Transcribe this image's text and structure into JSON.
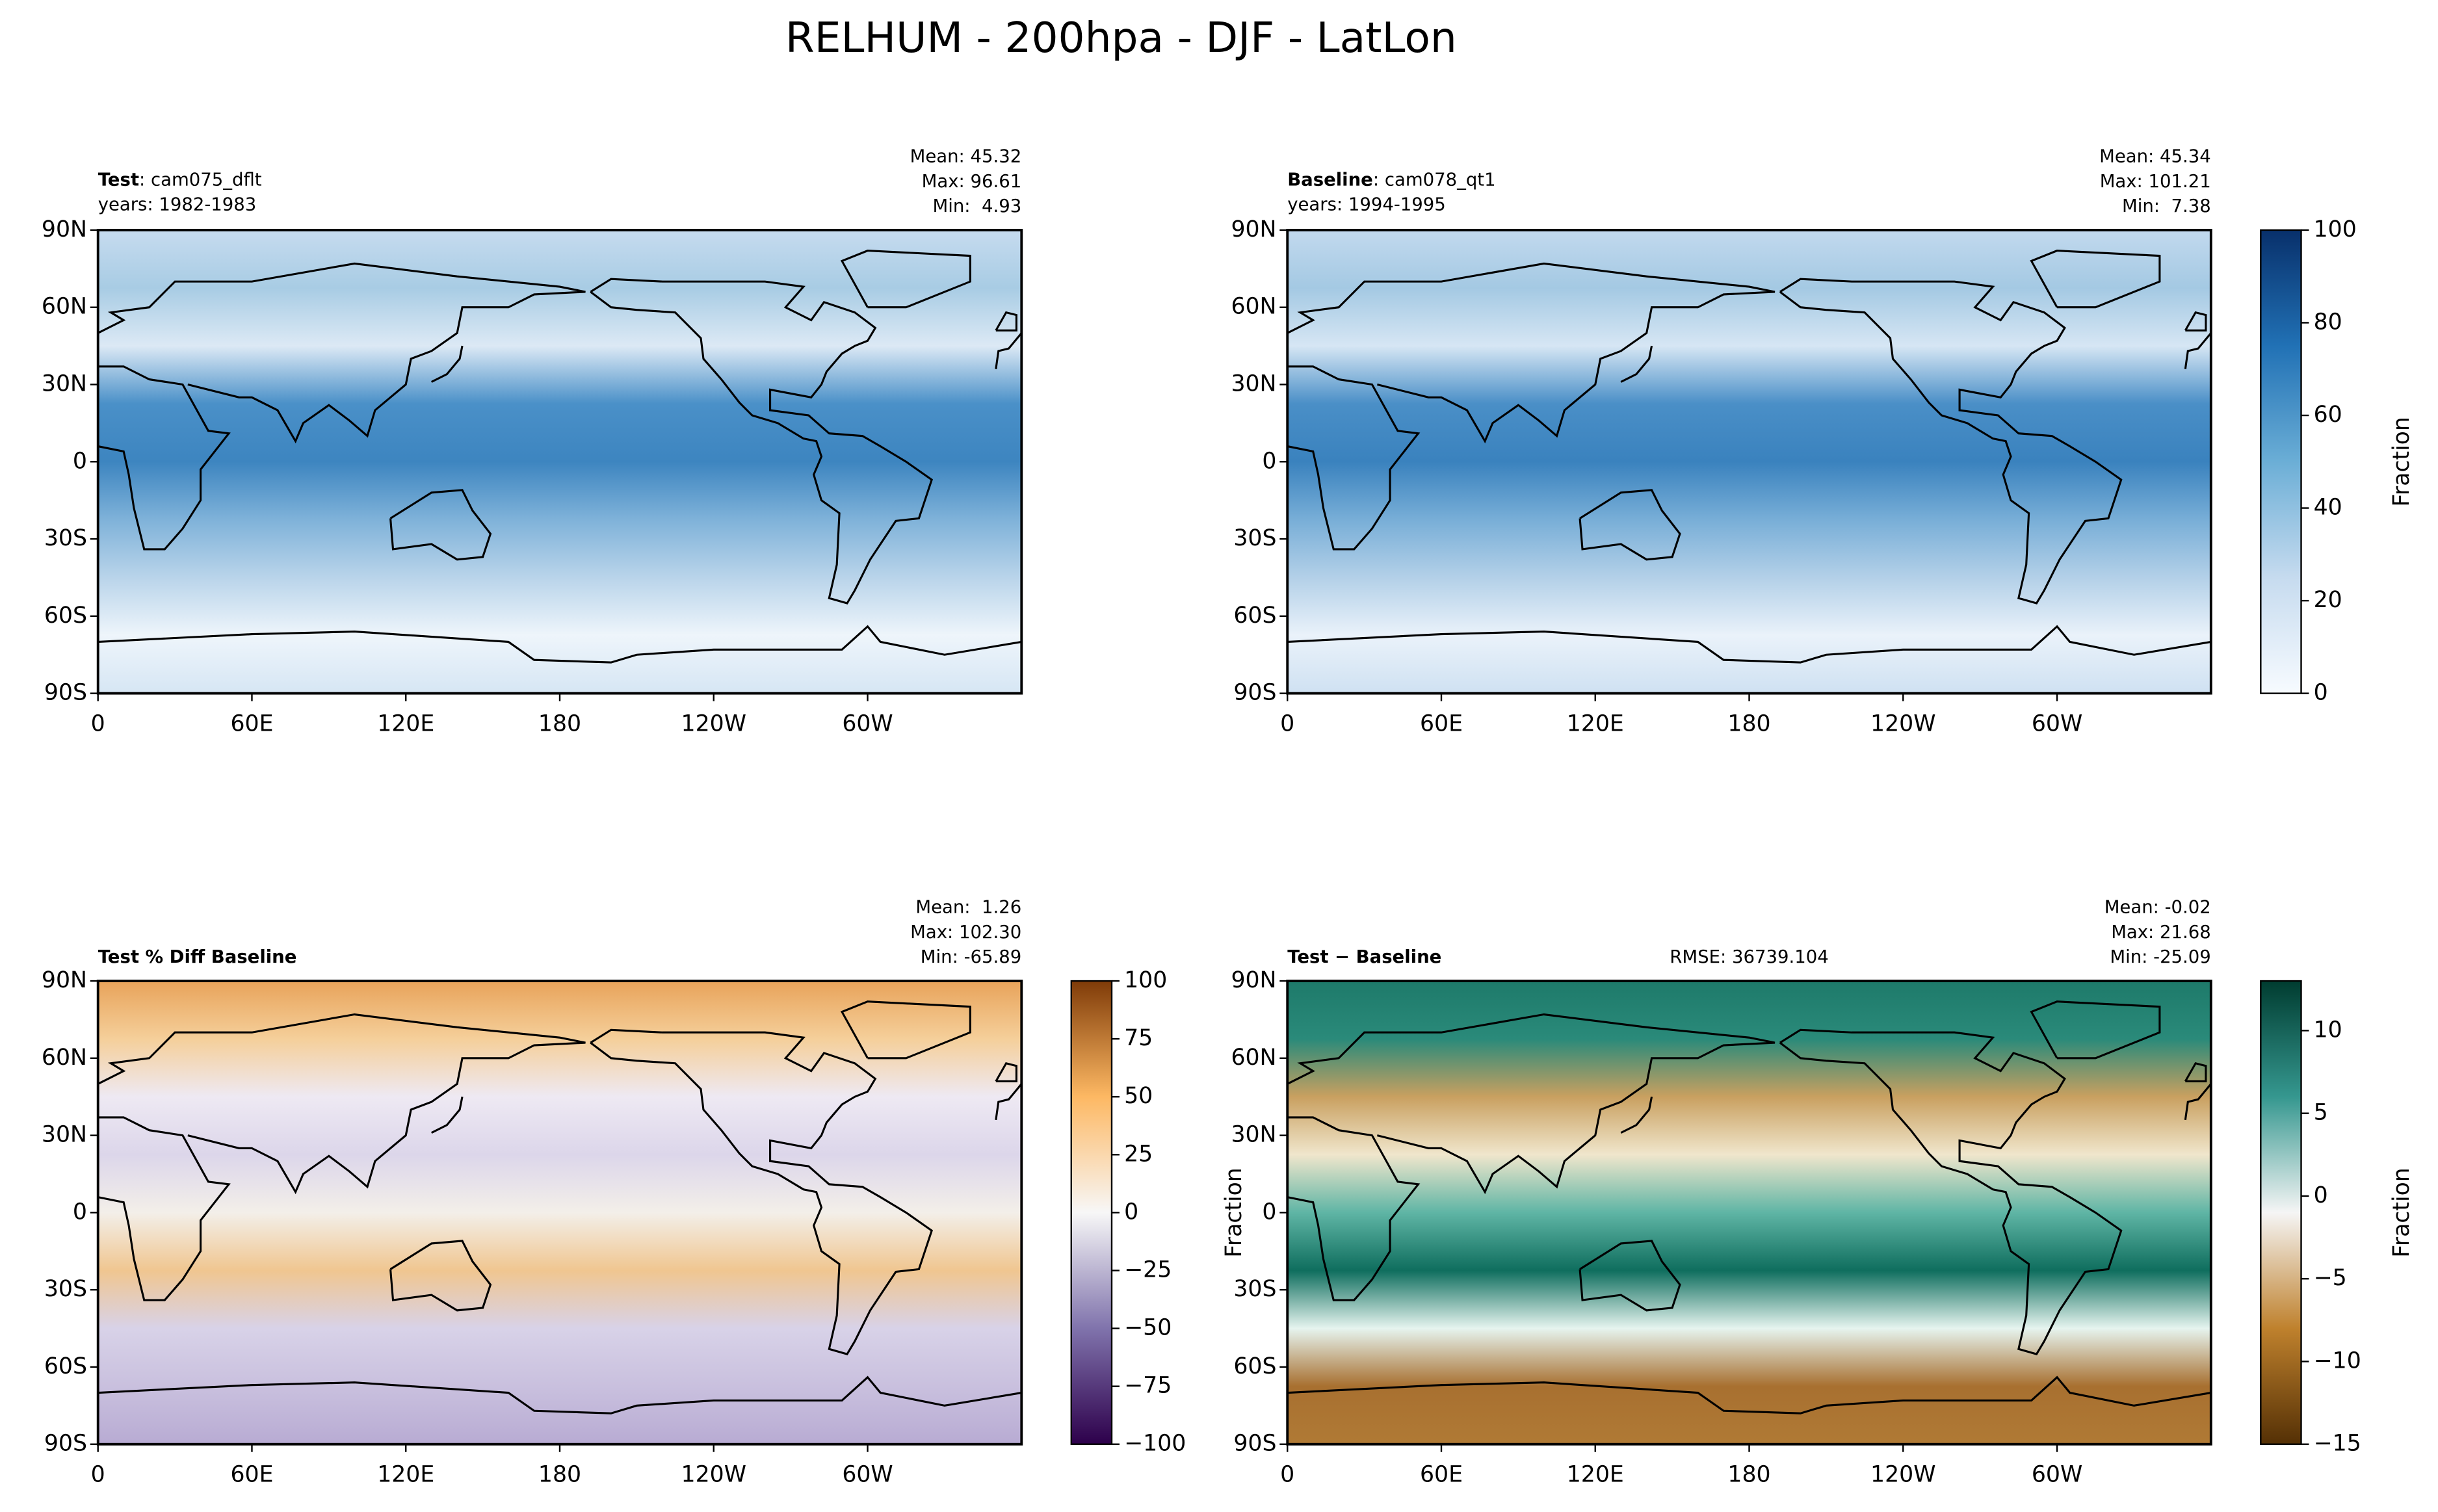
{
  "title": "RELHUM - 200hpa - DJF - LatLon",
  "chart_data": [
    {
      "type": "map",
      "title_bold": "Test",
      "title_rest": ": cam075_dflt",
      "subtitle": "years: 1982-1983",
      "stats": [
        "Mean: 45.32",
        "Max: 96.61",
        "Min:  4.93"
      ],
      "xlim": [
        0,
        360
      ],
      "ylim": [
        -90,
        90
      ],
      "xticks": [
        0,
        {
          "value": 60,
          "label": "60E"
        },
        {
          "value": 120,
          "label": "120E"
        },
        180,
        {
          "value": 240,
          "label": "120W"
        },
        {
          "value": 300,
          "label": "60W"
        }
      ],
      "yticks": [
        {
          "value": -90,
          "label": "90S"
        },
        {
          "value": -60,
          "label": "60S"
        },
        {
          "value": -30,
          "label": "30S"
        },
        0,
        {
          "value": 30,
          "label": "30N"
        },
        {
          "value": 60,
          "label": "60N"
        },
        {
          "value": 90,
          "label": "90N"
        }
      ],
      "map_colors": [
        "#d6e6f4",
        "#eef5fb",
        "#b9d4ea",
        "#7fb2d9",
        "#3d85c0",
        "#4a90c8",
        "#dce9f5",
        "#a8cce4",
        "#c6dbef"
      ]
    },
    {
      "type": "map",
      "title_bold": "Baseline",
      "title_rest": ": cam078_qt1",
      "subtitle": "years: 1994-1995",
      "stats": [
        "Mean: 45.34",
        "Max: 101.21",
        "Min:  7.38"
      ],
      "xlim": [
        0,
        360
      ],
      "ylim": [
        -90,
        90
      ],
      "xticks": [
        0,
        {
          "value": 60,
          "label": "60E"
        },
        {
          "value": 120,
          "label": "120E"
        },
        180,
        {
          "value": 240,
          "label": "120W"
        },
        {
          "value": 300,
          "label": "60W"
        }
      ],
      "yticks": [
        {
          "value": -90,
          "label": "90S"
        },
        {
          "value": -60,
          "label": "60S"
        },
        {
          "value": -30,
          "label": "30S"
        },
        0,
        {
          "value": 30,
          "label": "30N"
        },
        {
          "value": 60,
          "label": "60N"
        },
        {
          "value": 90,
          "label": "90N"
        }
      ],
      "map_colors": [
        "#cfe1f2",
        "#eaf2fa",
        "#b3d0e8",
        "#78aed7",
        "#3a82be",
        "#4a8fc7",
        "#d6e6f4",
        "#a4c9e3",
        "#c2d9ee"
      ],
      "colorbar": {
        "label": "Fraction",
        "lim": [
          0,
          100
        ],
        "ticks": [
          0,
          20,
          40,
          60,
          80,
          100
        ],
        "colors": [
          "#f7fbff",
          "#c6dbef",
          "#6baed6",
          "#2171b5",
          "#08306b"
        ]
      }
    },
    {
      "type": "map",
      "title_bold": "Test % Diff Baseline",
      "stats": [
        "Mean:  1.26",
        "Max: 102.30",
        "Min: -65.89"
      ],
      "xlim": [
        0,
        360
      ],
      "ylim": [
        -90,
        90
      ],
      "xticks": [
        0,
        {
          "value": 60,
          "label": "60E"
        },
        {
          "value": 120,
          "label": "120E"
        },
        180,
        {
          "value": 240,
          "label": "120W"
        },
        {
          "value": 300,
          "label": "60W"
        }
      ],
      "yticks": [
        {
          "value": -90,
          "label": "90S"
        },
        {
          "value": -60,
          "label": "60S"
        },
        {
          "value": -30,
          "label": "30S"
        },
        0,
        {
          "value": 30,
          "label": "30N"
        },
        {
          "value": 60,
          "label": "60N"
        },
        {
          "value": 90,
          "label": "90N"
        }
      ],
      "map_colors": [
        "#b8abd3",
        "#c9c0de",
        "#d8d2e8",
        "#f0c690",
        "#f3efe9",
        "#dcd6ea",
        "#eee9f3",
        "#f5cf9a",
        "#e8a35a"
      ],
      "colorbar": {
        "lim": [
          -100,
          100
        ],
        "ticks": [
          {
            "value": -100,
            "label": "−100"
          },
          {
            "value": -75,
            "label": "−75"
          },
          {
            "value": -50,
            "label": "−50"
          },
          {
            "value": -25,
            "label": "−25"
          },
          0,
          25,
          50,
          75,
          100
        ],
        "colors": [
          "#2d004b",
          "#8073ac",
          "#f7f7f7",
          "#fdb863",
          "#7f3b08"
        ]
      }
    },
    {
      "type": "map",
      "title_bold": "Test − Baseline",
      "annotation": "RMSE: 36739.104",
      "ylabel": "Fraction",
      "stats": [
        "Mean: -0.02",
        "Max: 21.68",
        "Min: -25.09"
      ],
      "xlim": [
        0,
        360
      ],
      "ylim": [
        -90,
        90
      ],
      "xticks": [
        0,
        {
          "value": 60,
          "label": "60E"
        },
        {
          "value": 120,
          "label": "120E"
        },
        180,
        {
          "value": 240,
          "label": "120W"
        },
        {
          "value": 300,
          "label": "60W"
        }
      ],
      "yticks": [
        {
          "value": -90,
          "label": "90S"
        },
        {
          "value": -60,
          "label": "60S"
        },
        {
          "value": -30,
          "label": "30S"
        },
        0,
        {
          "value": 30,
          "label": "30N"
        },
        {
          "value": 60,
          "label": "60N"
        },
        {
          "value": 90,
          "label": "90N"
        }
      ],
      "map_colors": [
        "#b07a35",
        "#a87030",
        "#e6f4ef",
        "#0f6e5e",
        "#5fb5a5",
        "#f0e6cc",
        "#c9a060",
        "#2a8a7a",
        "#1e7a6a"
      ],
      "colorbar": {
        "label": "Fraction",
        "lim": [
          -15,
          13
        ],
        "ticks": [
          {
            "value": -15,
            "label": "−15"
          },
          {
            "value": -10,
            "label": "−10"
          },
          {
            "value": -5,
            "label": "−5"
          },
          0,
          5,
          10
        ],
        "colors": [
          "#543005",
          "#bf812d",
          "#f5f5f5",
          "#35978f",
          "#003c30"
        ]
      }
    }
  ]
}
